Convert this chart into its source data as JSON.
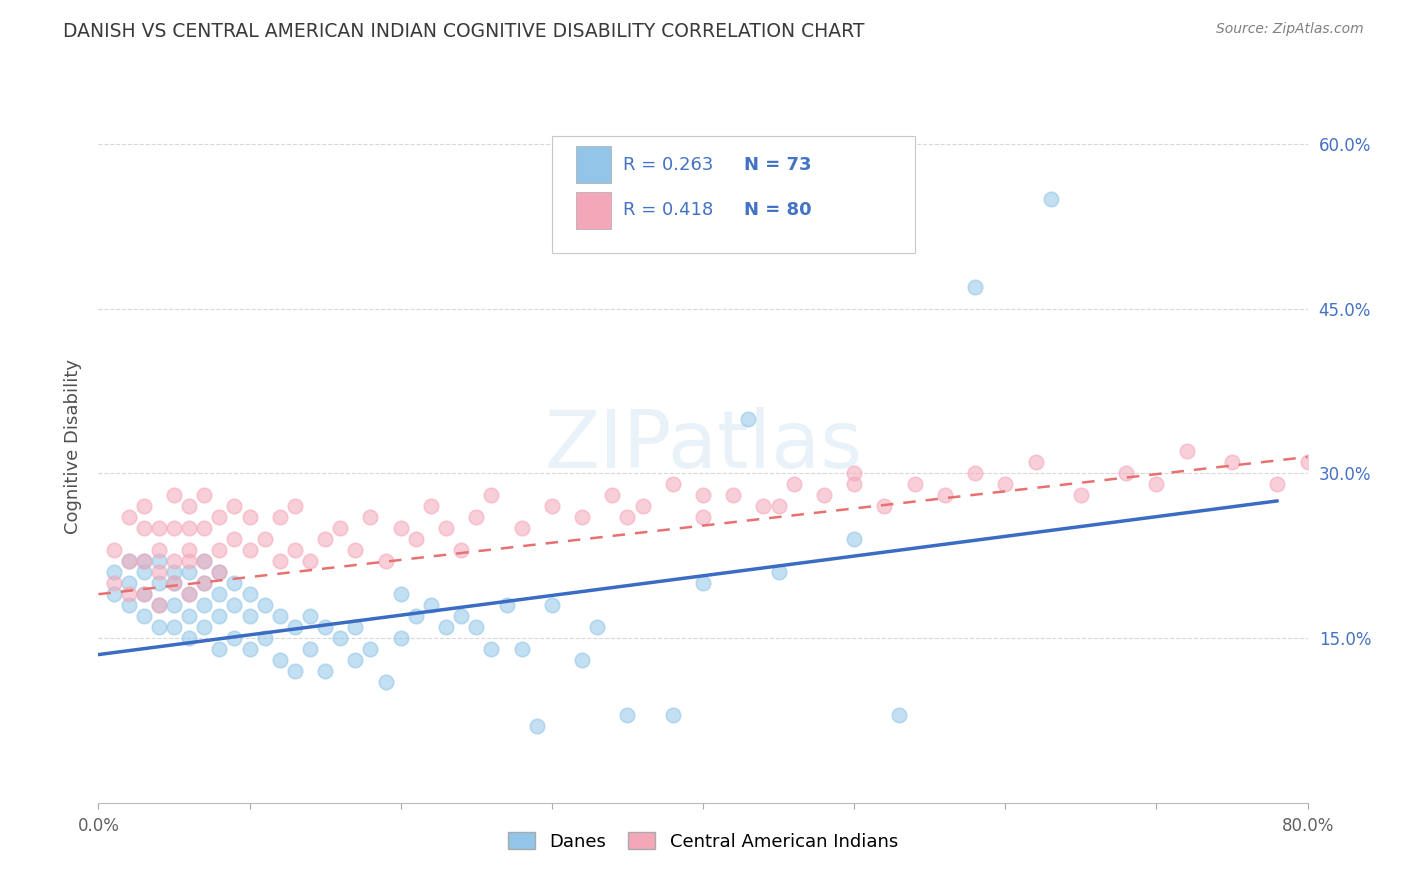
{
  "title": "DANISH VS CENTRAL AMERICAN INDIAN COGNITIVE DISABILITY CORRELATION CHART",
  "source": "Source: ZipAtlas.com",
  "ylabel": "Cognitive Disability",
  "watermark": "ZIPatlas",
  "xlim": [
    0.0,
    0.8
  ],
  "ylim": [
    0.0,
    0.65
  ],
  "yticks_right": [
    0.15,
    0.3,
    0.45,
    0.6
  ],
  "ytick_right_labels": [
    "15.0%",
    "30.0%",
    "45.0%",
    "60.0%"
  ],
  "blue_color": "#92C5E8",
  "pink_color": "#F4A7B9",
  "line_blue": "#3A6CC4",
  "line_pink": "#E87070",
  "danes_label": "Danes",
  "cai_label": "Central American Indians",
  "title_color": "#3a3a3a",
  "source_color": "#808080",
  "grid_color": "#D8D8D8",
  "blue_scatter_x": [
    0.01,
    0.01,
    0.02,
    0.02,
    0.02,
    0.03,
    0.03,
    0.03,
    0.03,
    0.04,
    0.04,
    0.04,
    0.04,
    0.05,
    0.05,
    0.05,
    0.05,
    0.06,
    0.06,
    0.06,
    0.06,
    0.07,
    0.07,
    0.07,
    0.07,
    0.08,
    0.08,
    0.08,
    0.08,
    0.09,
    0.09,
    0.09,
    0.1,
    0.1,
    0.1,
    0.11,
    0.11,
    0.12,
    0.12,
    0.13,
    0.13,
    0.14,
    0.14,
    0.15,
    0.15,
    0.16,
    0.17,
    0.17,
    0.18,
    0.19,
    0.2,
    0.2,
    0.21,
    0.22,
    0.23,
    0.24,
    0.25,
    0.26,
    0.27,
    0.28,
    0.29,
    0.3,
    0.32,
    0.33,
    0.35,
    0.38,
    0.4,
    0.43,
    0.45,
    0.5,
    0.53,
    0.58,
    0.63
  ],
  "blue_scatter_y": [
    0.21,
    0.19,
    0.2,
    0.22,
    0.18,
    0.21,
    0.19,
    0.22,
    0.17,
    0.2,
    0.18,
    0.22,
    0.16,
    0.2,
    0.18,
    0.21,
    0.16,
    0.19,
    0.21,
    0.17,
    0.15,
    0.2,
    0.18,
    0.22,
    0.16,
    0.19,
    0.17,
    0.21,
    0.14,
    0.18,
    0.2,
    0.15,
    0.19,
    0.17,
    0.14,
    0.18,
    0.15,
    0.17,
    0.13,
    0.16,
    0.12,
    0.17,
    0.14,
    0.16,
    0.12,
    0.15,
    0.16,
    0.13,
    0.14,
    0.11,
    0.15,
    0.19,
    0.17,
    0.18,
    0.16,
    0.17,
    0.16,
    0.14,
    0.18,
    0.14,
    0.07,
    0.18,
    0.13,
    0.16,
    0.08,
    0.08,
    0.2,
    0.35,
    0.21,
    0.24,
    0.08,
    0.47,
    0.55
  ],
  "pink_scatter_x": [
    0.01,
    0.01,
    0.02,
    0.02,
    0.02,
    0.03,
    0.03,
    0.03,
    0.03,
    0.04,
    0.04,
    0.04,
    0.04,
    0.05,
    0.05,
    0.05,
    0.05,
    0.06,
    0.06,
    0.06,
    0.06,
    0.06,
    0.07,
    0.07,
    0.07,
    0.07,
    0.08,
    0.08,
    0.08,
    0.09,
    0.09,
    0.1,
    0.1,
    0.11,
    0.12,
    0.12,
    0.13,
    0.13,
    0.14,
    0.15,
    0.16,
    0.17,
    0.18,
    0.19,
    0.2,
    0.21,
    0.22,
    0.23,
    0.24,
    0.25,
    0.26,
    0.28,
    0.3,
    0.32,
    0.34,
    0.36,
    0.38,
    0.4,
    0.42,
    0.44,
    0.46,
    0.48,
    0.5,
    0.52,
    0.54,
    0.56,
    0.58,
    0.6,
    0.62,
    0.65,
    0.68,
    0.7,
    0.72,
    0.75,
    0.78,
    0.8,
    0.35,
    0.4,
    0.45,
    0.5
  ],
  "pink_scatter_y": [
    0.23,
    0.2,
    0.26,
    0.22,
    0.19,
    0.25,
    0.22,
    0.19,
    0.27,
    0.23,
    0.21,
    0.25,
    0.18,
    0.22,
    0.25,
    0.2,
    0.28,
    0.22,
    0.25,
    0.19,
    0.23,
    0.27,
    0.22,
    0.25,
    0.2,
    0.28,
    0.23,
    0.26,
    0.21,
    0.24,
    0.27,
    0.23,
    0.26,
    0.24,
    0.22,
    0.26,
    0.23,
    0.27,
    0.22,
    0.24,
    0.25,
    0.23,
    0.26,
    0.22,
    0.25,
    0.24,
    0.27,
    0.25,
    0.23,
    0.26,
    0.28,
    0.25,
    0.27,
    0.26,
    0.28,
    0.27,
    0.29,
    0.26,
    0.28,
    0.27,
    0.29,
    0.28,
    0.3,
    0.27,
    0.29,
    0.28,
    0.3,
    0.29,
    0.31,
    0.28,
    0.3,
    0.29,
    0.32,
    0.31,
    0.29,
    0.31,
    0.26,
    0.28,
    0.27,
    0.29
  ],
  "blue_line_x": [
    0.0,
    0.78
  ],
  "blue_line_y": [
    0.135,
    0.275
  ],
  "pink_line_x": [
    0.0,
    0.8
  ],
  "pink_line_y": [
    0.19,
    0.315
  ]
}
